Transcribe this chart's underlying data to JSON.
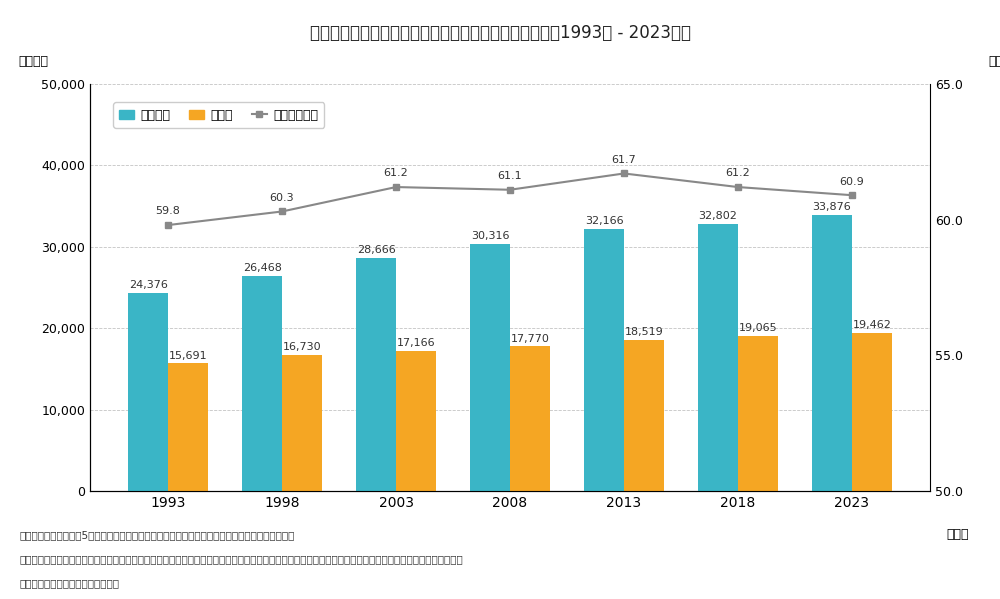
{
  "title": "図表１　持ち家数、借家数及び持ち家住宅率の推移　（1993年 - 2023年）",
  "years": [
    "1993",
    "1998",
    "2003",
    "2008",
    "2013",
    "2018",
    "2023"
  ],
  "owned": [
    24376,
    26468,
    28666,
    30316,
    32166,
    32802,
    33876
  ],
  "rented": [
    15691,
    16730,
    17166,
    17770,
    18519,
    19065,
    19462
  ],
  "rate": [
    59.8,
    60.3,
    61.2,
    61.1,
    61.7,
    61.2,
    60.9
  ],
  "owned_color": "#3ab5c6",
  "rented_color": "#f5a623",
  "rate_color": "#888888",
  "bar_width": 0.35,
  "ylim_left": [
    0,
    50000
  ],
  "ylim_right": [
    50.0,
    65.0
  ],
  "yticks_left": [
    0,
    10000,
    20000,
    30000,
    40000,
    50000
  ],
  "yticks_right": [
    50.0,
    55.0,
    60.0,
    65.0
  ],
  "ylabel_left": "（千戸）",
  "ylabel_right": "（％）",
  "xlabel": "（年）",
  "legend_owned": "持ち家数",
  "legend_rented": "借家数",
  "legend_rate": "持ち家住宅率",
  "footnote1": "（出所）総務省「令和5年住宅・土地統計調査」より三井住友トラスト・資産のミライ研究所作成",
  "footnote2": "＊借家数には、「公営の借家」・「都市再生機構・公社の借家」・「民営借家」・「給与住宅」を含む　＊持ち家住宅率：住宅全体に占める持ち家住宅の割合",
  "footnote3": "＊住宅の所有の関係「不詳」を含む",
  "bg_color": "#ffffff",
  "grid_color": "#aaaaaa"
}
